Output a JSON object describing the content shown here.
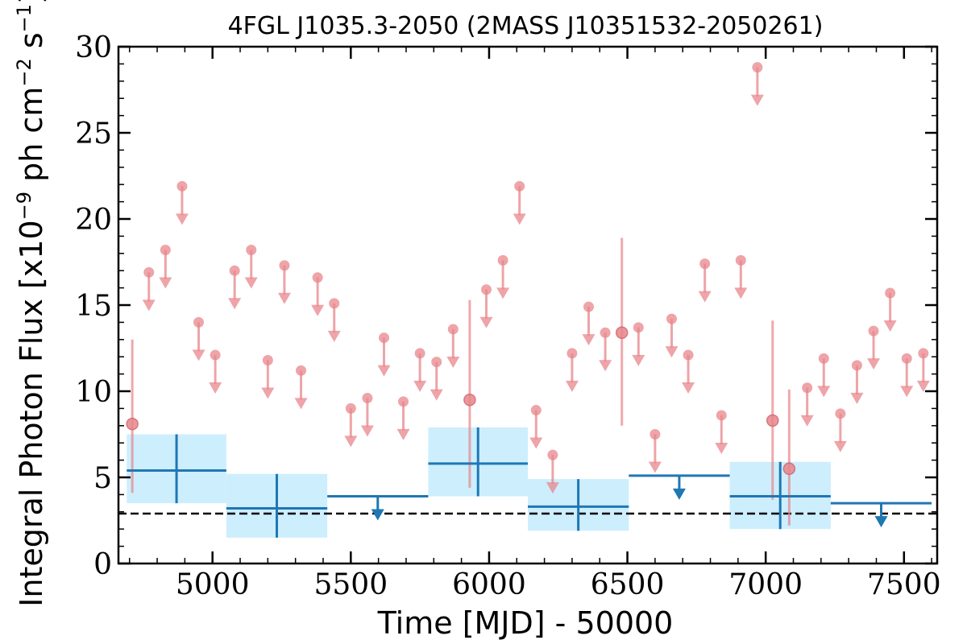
{
  "chart_data": {
    "type": "scatter",
    "title": "4FGL J1035.3-2050 (2MASS J10351532-2050261)",
    "xlabel": "Time [MJD] - 50000",
    "ylabel": "Integral Photon Flux [x10^-9 ph cm^-2 s^-1]",
    "xlim": [
      4660,
      7620
    ],
    "ylim": [
      0,
      30
    ],
    "xticks": [
      5000,
      5500,
      6000,
      6500,
      7000,
      7500
    ],
    "yticks": [
      0,
      5,
      10,
      15,
      20,
      25,
      30
    ],
    "reference_line": {
      "y": 2.9,
      "style": "dashed",
      "color": "#000000"
    },
    "colors": {
      "short_bins": "#e8868b",
      "long_bins": "#1f77b4",
      "long_bins_fill": "#cdeefd"
    },
    "series": [
      {
        "points": [
          {
            "x": 4710,
            "y": 8.1,
            "ylow": 4.1,
            "yhigh": 13.0
          },
          {
            "x": 5930,
            "y": 9.5,
            "ylow": 4.4,
            "yhigh": 15.3
          },
          {
            "x": 6480,
            "y": 13.4,
            "ylow": 8.0,
            "yhigh": 18.9
          },
          {
            "x": 7025,
            "y": 8.3,
            "ylow": 3.7,
            "yhigh": 14.1
          },
          {
            "x": 7085,
            "y": 5.5,
            "ylow": 2.2,
            "yhigh": 10.1
          }
        ],
        "upper_limits": [
          {
            "x": 4770,
            "y": 16.9
          },
          {
            "x": 4830,
            "y": 18.2
          },
          {
            "x": 4890,
            "y": 21.9
          },
          {
            "x": 4950,
            "y": 14.0
          },
          {
            "x": 5010,
            "y": 12.1
          },
          {
            "x": 5080,
            "y": 17.0
          },
          {
            "x": 5140,
            "y": 18.2
          },
          {
            "x": 5200,
            "y": 11.8
          },
          {
            "x": 5260,
            "y": 17.3
          },
          {
            "x": 5320,
            "y": 11.2
          },
          {
            "x": 5380,
            "y": 16.6
          },
          {
            "x": 5440,
            "y": 15.1
          },
          {
            "x": 5500,
            "y": 9.0
          },
          {
            "x": 5560,
            "y": 9.6
          },
          {
            "x": 5620,
            "y": 13.1
          },
          {
            "x": 5690,
            "y": 9.4
          },
          {
            "x": 5750,
            "y": 12.2
          },
          {
            "x": 5810,
            "y": 11.7
          },
          {
            "x": 5870,
            "y": 13.6
          },
          {
            "x": 5990,
            "y": 15.9
          },
          {
            "x": 6050,
            "y": 17.6
          },
          {
            "x": 6110,
            "y": 21.9
          },
          {
            "x": 6170,
            "y": 8.9
          },
          {
            "x": 6230,
            "y": 6.3
          },
          {
            "x": 6300,
            "y": 12.2
          },
          {
            "x": 6360,
            "y": 14.9
          },
          {
            "x": 6420,
            "y": 13.4
          },
          {
            "x": 6540,
            "y": 13.7
          },
          {
            "x": 6600,
            "y": 7.5
          },
          {
            "x": 6660,
            "y": 14.2
          },
          {
            "x": 6720,
            "y": 12.1
          },
          {
            "x": 6780,
            "y": 17.4
          },
          {
            "x": 6840,
            "y": 8.6
          },
          {
            "x": 6910,
            "y": 17.6
          },
          {
            "x": 6970,
            "y": 28.8
          },
          {
            "x": 7150,
            "y": 10.2
          },
          {
            "x": 7210,
            "y": 11.9
          },
          {
            "x": 7270,
            "y": 8.7
          },
          {
            "x": 7330,
            "y": 11.5
          },
          {
            "x": 7390,
            "y": 13.5
          },
          {
            "x": 7450,
            "y": 15.7
          },
          {
            "x": 7510,
            "y": 11.9
          },
          {
            "x": 7570,
            "y": 12.2
          }
        ]
      },
      {
        "bins": [
          {
            "x0": 4690,
            "x1": 5050,
            "y": 5.4,
            "ylow": 3.5,
            "yhigh": 7.5
          },
          {
            "x0": 5050,
            "x1": 5415,
            "y": 3.2,
            "ylow": 1.5,
            "yhigh": 5.2
          },
          {
            "x0": 5780,
            "x1": 6140,
            "y": 5.8,
            "ylow": 3.9,
            "yhigh": 7.9
          },
          {
            "x0": 6140,
            "x1": 6505,
            "y": 3.3,
            "ylow": 1.9,
            "yhigh": 4.9
          },
          {
            "x0": 6870,
            "x1": 7235,
            "y": 3.9,
            "ylow": 2.0,
            "yhigh": 5.9
          }
        ],
        "upper_limits": [
          {
            "x0": 5415,
            "x1": 5780,
            "y": 3.9
          },
          {
            "x0": 6505,
            "x1": 6870,
            "y": 5.1
          },
          {
            "x0": 7235,
            "x1": 7600,
            "y": 3.5
          }
        ]
      }
    ]
  }
}
